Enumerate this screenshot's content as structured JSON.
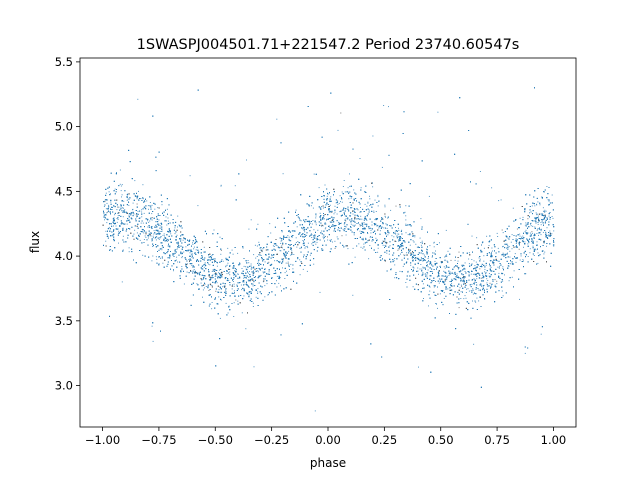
{
  "chart_data": {
    "type": "scatter",
    "title": "1SWASPJ004501.71+221547.2 Period 23740.60547s",
    "xlabel": "phase",
    "ylabel": "flux",
    "xlim": [
      -1.1,
      1.1
    ],
    "ylim": [
      2.68,
      5.53
    ],
    "grid": false,
    "legend": "none",
    "x_ticks": [
      -1.0,
      -0.75,
      -0.5,
      -0.25,
      0.0,
      0.25,
      0.5,
      0.75,
      1.0
    ],
    "x_tick_labels": [
      "−1.00",
      "−0.75",
      "−0.50",
      "−0.25",
      "0.00",
      "0.25",
      "0.50",
      "0.75",
      "1.00"
    ],
    "y_ticks": [
      3.0,
      3.5,
      4.0,
      4.5,
      5.0,
      5.5
    ],
    "y_tick_labels": [
      "3.0",
      "3.5",
      "4.0",
      "4.5",
      "5.0",
      "5.5"
    ],
    "color": "#1f77b4",
    "trend": {
      "phase": [
        -1.0,
        -0.9,
        -0.8,
        -0.7,
        -0.6,
        -0.5,
        -0.4,
        -0.3,
        -0.2,
        -0.1,
        0.0,
        0.1,
        0.2,
        0.3,
        0.4,
        0.5,
        0.6,
        0.7,
        0.8,
        0.9,
        1.0
      ],
      "flux": [
        4.29,
        4.32,
        4.25,
        4.12,
        3.96,
        3.85,
        3.82,
        3.89,
        4.02,
        4.18,
        4.29,
        4.32,
        4.25,
        4.12,
        3.96,
        3.85,
        3.82,
        3.89,
        4.02,
        4.18,
        4.29
      ]
    },
    "scatter_std": 0.12,
    "outlier_range": [
      2.8,
      5.4
    ],
    "n_points_approx": 9000
  }
}
